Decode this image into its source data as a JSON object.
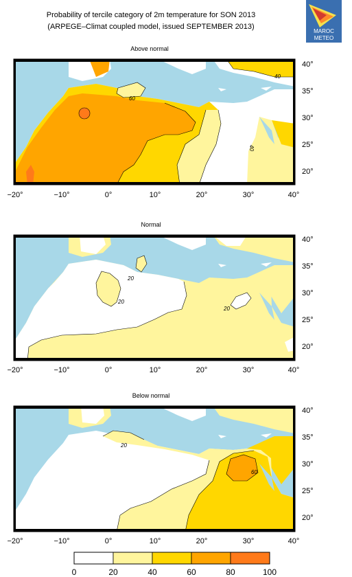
{
  "title_line1": "Probability of tercile category of 2m temperature for SON 2013",
  "title_line2": "(ARPEGE–Climat coupled model, issued SEPTEMBER 2013)",
  "logo_text": {
    "line1": "MAROC",
    "line2": "METEO"
  },
  "x_ticks": [
    "−20°",
    "−10°",
    "0°",
    "10°",
    "20°",
    "30°",
    "40°"
  ],
  "y_ticks": [
    "40°",
    "35°",
    "30°",
    "25°",
    "20°"
  ],
  "panels": [
    {
      "title": "Above normal",
      "contour_labels": [
        "60",
        "40",
        "40"
      ]
    },
    {
      "title": "Normal",
      "contour_labels": [
        "20",
        "20",
        "20"
      ]
    },
    {
      "title": "Below normal",
      "contour_labels": [
        "20",
        "60"
      ]
    }
  ],
  "legend": {
    "ticks": [
      "0",
      "20",
      "40",
      "60",
      "80",
      "100"
    ],
    "colors": [
      "#ffffff",
      "#fff59d",
      "#ffd700",
      "#ffa500",
      "#ff7a1a"
    ]
  },
  "colors": {
    "sea": "#a8d8e8",
    "class_20_40": "#fff59d",
    "class_40_60": "#ffd700",
    "class_60_80": "#ffa500",
    "class_80_100": "#ff7a1a"
  }
}
